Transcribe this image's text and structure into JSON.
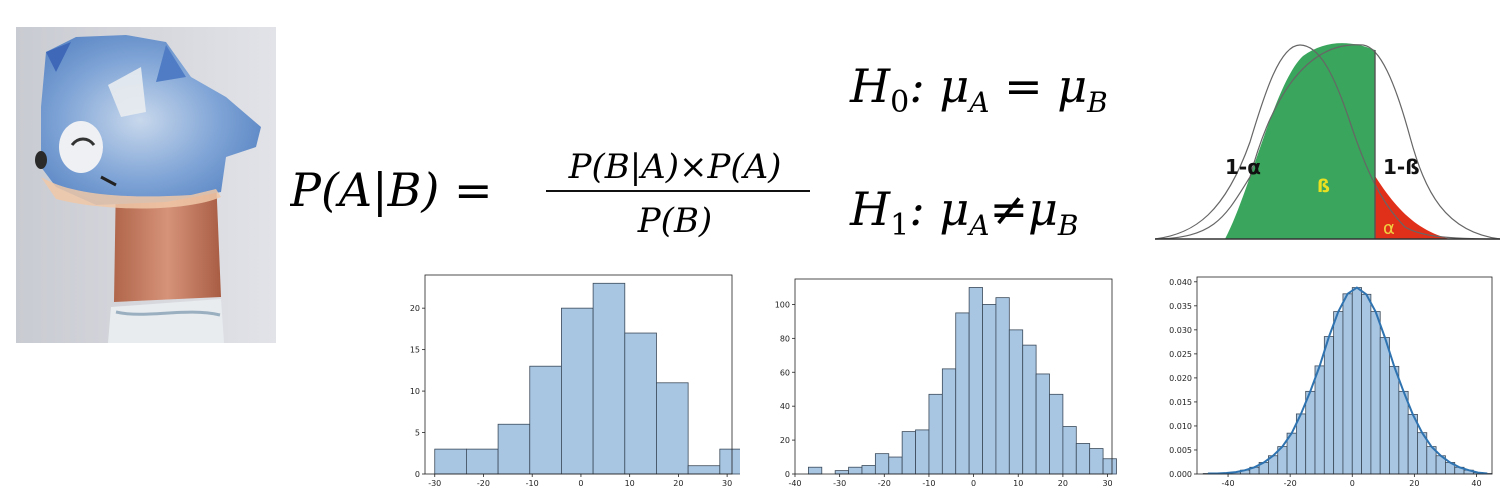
{
  "formulas": {
    "bayes": {
      "lhs": "P(A|B) =",
      "numerator": "P(B|A)×P(A)",
      "denominator": "P(B)"
    },
    "h0": {
      "h": "H",
      "sub": "0",
      "rest": ": μ",
      "a": "A",
      "eq": " = μ",
      "b": "B"
    },
    "h1": {
      "h": "H",
      "sub": "1",
      "rest": ": μ",
      "a": "A",
      "eq": "≠μ",
      "b": "B"
    }
  },
  "power_diagram": {
    "labels": {
      "one_minus_alpha": "1-α",
      "beta": "ß",
      "one_minus_beta": "1-ß",
      "alpha": "α"
    },
    "colors": {
      "beta_fill": "#3aa55c",
      "alpha_fill": "#e0301a",
      "beta_text": "#e8e020",
      "alpha_text": "#f0d040"
    }
  },
  "chart_data": [
    {
      "type": "bar",
      "x": [
        -30,
        -23.5,
        -17,
        -10.5,
        -4,
        2.5,
        9,
        15.5,
        22,
        28.5
      ],
      "bin_width": 6.5,
      "values": [
        3,
        3,
        6,
        13,
        20,
        23,
        17,
        11,
        1,
        3
      ],
      "xlim": [
        -32,
        31
      ],
      "ylim": [
        0,
        24
      ],
      "xticks": [
        -30,
        -20,
        -10,
        0,
        10,
        20,
        30
      ],
      "yticks": [
        0,
        5,
        10,
        15,
        20
      ],
      "color": "#a8c6e2"
    },
    {
      "type": "bar",
      "x": [
        -37,
        -34,
        -31,
        -28,
        -25,
        -22,
        -19,
        -16,
        -13,
        -10,
        -7,
        -4,
        -1,
        2,
        5,
        8,
        11,
        14,
        17,
        20,
        23,
        26,
        29
      ],
      "bin_width": 3,
      "values": [
        4,
        0,
        2,
        4,
        5,
        12,
        10,
        25,
        26,
        47,
        62,
        95,
        110,
        100,
        104,
        85,
        76,
        59,
        47,
        28,
        18,
        15,
        9
      ],
      "xlim": [
        -40,
        31
      ],
      "ylim": [
        0,
        115
      ],
      "xticks": [
        -40,
        -30,
        -20,
        -10,
        0,
        10,
        20,
        30
      ],
      "yticks": [
        0,
        20,
        40,
        60,
        80,
        100
      ],
      "color": "#a8c6e2"
    },
    {
      "type": "bar",
      "x": [
        -48,
        -45,
        -42,
        -39,
        -36,
        -33,
        -30,
        -27,
        -24,
        -21,
        -18,
        -15,
        -12,
        -9,
        -6,
        -3,
        0,
        3,
        6,
        9,
        12,
        15,
        18,
        21,
        24,
        27,
        30,
        33,
        36,
        39,
        42
      ],
      "bin_width": 3,
      "values": [
        0.0001,
        0.0001,
        0.0002,
        0.0004,
        0.0008,
        0.0014,
        0.0024,
        0.0038,
        0.0057,
        0.0085,
        0.0125,
        0.0172,
        0.0225,
        0.0286,
        0.0338,
        0.0375,
        0.0388,
        0.0374,
        0.0338,
        0.0284,
        0.0224,
        0.0172,
        0.0124,
        0.0086,
        0.0057,
        0.0038,
        0.0024,
        0.0014,
        0.0008,
        0.0003,
        0.0001
      ],
      "xlim": [
        -50,
        45
      ],
      "ylim": [
        0,
        0.041
      ],
      "xticks": [
        -40,
        -20,
        0,
        20,
        40
      ],
      "yticks": [
        0,
        0.005,
        0.01,
        0.015,
        0.02,
        0.025,
        0.03,
        0.035,
        0.04
      ],
      "ytick_labels": [
        "0.000",
        "0.005",
        "0.010",
        "0.015",
        "0.020",
        "0.025",
        "0.030",
        "0.035",
        "0.040"
      ],
      "kde": true,
      "color": "#a8c6e2",
      "kde_color": "#2f73b0"
    }
  ]
}
